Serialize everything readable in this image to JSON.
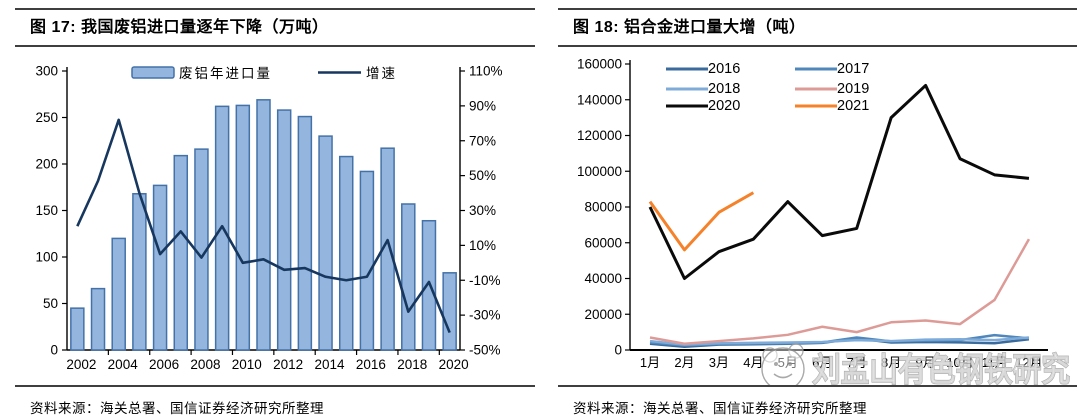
{
  "watermark": {
    "text": "刘孟山有色钢铁研究",
    "logo": "smiley-face-logo"
  },
  "chart_data": [
    {
      "type": "bar",
      "panel": "left",
      "title": "图 17:  我国废铝进口量逐年下降（万吨）",
      "source": "资料来源：海关总署、国信证券经济研究所整理",
      "categories": [
        "2002",
        "2003",
        "2004",
        "2005",
        "2006",
        "2007",
        "2008",
        "2009",
        "2010",
        "2011",
        "2012",
        "2013",
        "2014",
        "2015",
        "2016",
        "2017",
        "2018",
        "2019",
        "2020"
      ],
      "x_tick_labels": [
        "2002",
        "2004",
        "2006",
        "2008",
        "2010",
        "2012",
        "2014",
        "2016",
        "2018",
        "2020"
      ],
      "series": [
        {
          "name": "废铝年进口量",
          "kind": "bar",
          "axis": "left",
          "fill": "#93B5DE",
          "stroke": "#4472A8",
          "values": [
            45,
            66,
            120,
            168,
            177,
            209,
            216,
            262,
            263,
            269,
            258,
            251,
            230,
            208,
            192,
            217,
            157,
            139,
            83
          ]
        },
        {
          "name": "增速",
          "kind": "line",
          "axis": "right",
          "color": "#17375E",
          "values": [
            21,
            47,
            82,
            40,
            5,
            18,
            3,
            21,
            0,
            2,
            -4,
            -3,
            -8,
            -10,
            -8,
            13,
            -28,
            -11,
            -40
          ]
        }
      ],
      "left_axis": {
        "range": [
          0,
          300
        ],
        "ticks": [
          0,
          50,
          100,
          150,
          200,
          250,
          300
        ]
      },
      "right_axis": {
        "range": [
          -50,
          110
        ],
        "ticks": [
          -50,
          -30,
          -10,
          10,
          30,
          50,
          70,
          90,
          110
        ],
        "tick_labels": [
          "-50%",
          "-30%",
          "-10%",
          "10%",
          "30%",
          "50%",
          "70%",
          "90%",
          "110%"
        ]
      },
      "grid": false,
      "legend_position": "top-center"
    },
    {
      "type": "line",
      "panel": "right",
      "title": "图 18:  铝合金进口量大增（吨）",
      "source": "资料来源：海关总署、国信证券经济研究所整理",
      "categories": [
        "1月",
        "2月",
        "3月",
        "4月",
        "5月",
        "6月",
        "7月",
        "8月",
        "9月",
        "10月",
        "11月",
        "12月"
      ],
      "y_axis": {
        "range": [
          0,
          160000
        ],
        "ticks": [
          0,
          20000,
          40000,
          60000,
          80000,
          100000,
          120000,
          140000,
          160000
        ]
      },
      "series": [
        {
          "name": "2016",
          "color": "#3A6B9C",
          "width": 2.5,
          "values": [
            3500,
            1800,
            3000,
            3200,
            3500,
            4000,
            6500,
            4200,
            4500,
            4300,
            3800,
            6000
          ]
        },
        {
          "name": "2017",
          "color": "#4F87BC",
          "width": 2.5,
          "values": [
            4200,
            2500,
            3300,
            3600,
            3800,
            4200,
            7000,
            4800,
            5200,
            5500,
            8300,
            6500
          ]
        },
        {
          "name": "2018",
          "color": "#7FABD9",
          "width": 2.5,
          "values": [
            5000,
            3000,
            3800,
            4000,
            4200,
            4500,
            5500,
            5000,
            5800,
            6000,
            5500,
            7000
          ]
        },
        {
          "name": "2019",
          "color": "#DD9B97",
          "width": 2.5,
          "values": [
            7000,
            3500,
            5000,
            6500,
            8500,
            13000,
            10000,
            15500,
            16500,
            14500,
            28000,
            62000
          ]
        },
        {
          "name": "2020",
          "color": "#0A0A0A",
          "width": 3,
          "values": [
            80000,
            40000,
            55000,
            62000,
            83000,
            64000,
            68000,
            130000,
            148000,
            107000,
            98000,
            96000
          ]
        },
        {
          "name": "2021",
          "color": "#F5822A",
          "width": 3,
          "values": [
            83000,
            56000,
            77000,
            88000
          ]
        }
      ],
      "grid": false,
      "legend_position": "top-left-two-columns"
    }
  ]
}
